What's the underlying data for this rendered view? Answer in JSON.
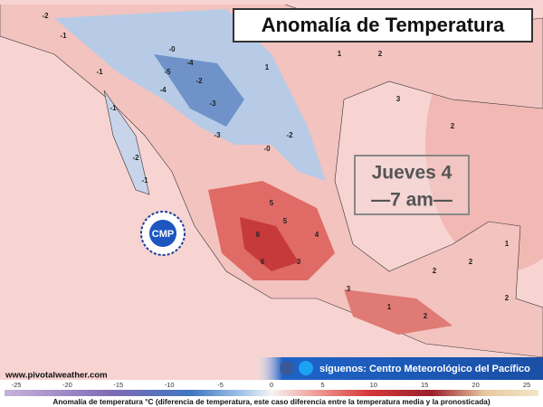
{
  "title": "Anomalía de Temperatura",
  "panel": {
    "day": "Jueves 4",
    "time": "—7 am—"
  },
  "logo": "CMP",
  "source": "www.pivotalweather.com",
  "social": "síguenos: Centro Meteorológico del Pacífico",
  "colorbar": {
    "ticks": [
      -25,
      -20,
      -15,
      -10,
      -5,
      0,
      5,
      10,
      15,
      20,
      25
    ],
    "caption": "Anomalía de temperatura °C (diferencia de temperatura, este caso diferencia entre la temperatura media y la pronosticada)"
  },
  "map_labels": [
    "-2",
    "-1",
    "-4",
    "-5",
    "-2",
    "-3",
    "-4",
    "-1",
    "-0",
    "1",
    "2",
    "1",
    "2",
    "-1",
    "-3",
    "-2",
    "-0",
    "5",
    "6",
    "5",
    "3",
    "6",
    "4",
    "2",
    "2",
    "3",
    "1",
    "2",
    "1",
    "3",
    "2",
    "-2",
    "-1",
    "2"
  ]
}
